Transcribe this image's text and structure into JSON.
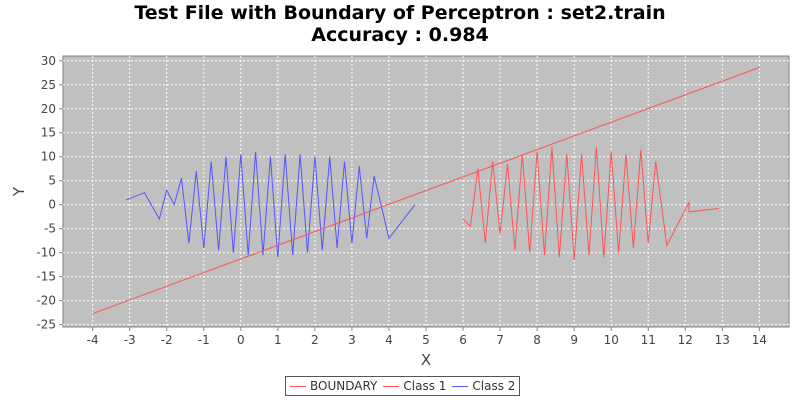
{
  "title_line1": "Test File with Boundary of Perceptron : set2.train",
  "title_line2": "Accuracy : 0.984",
  "chart_data": {
    "type": "line",
    "title": "Test File with Boundary of Perceptron : set2.train",
    "subtitle": "Accuracy : 0.984",
    "xlabel": "X",
    "ylabel": "Y",
    "xlim": [
      -4.8,
      14.8
    ],
    "ylim": [
      -25.5,
      31
    ],
    "xticks": [
      -4,
      -3,
      -2,
      -1,
      0,
      1,
      2,
      3,
      4,
      5,
      6,
      7,
      8,
      9,
      10,
      11,
      12,
      13,
      14
    ],
    "yticks": [
      -25,
      -20,
      -15,
      -10,
      -5,
      0,
      5,
      10,
      15,
      20,
      25,
      30
    ],
    "grid": true,
    "legend_position": "bottom",
    "series": [
      {
        "name": "BOUNDARY",
        "color": "#ff5555",
        "x": [
          -4,
          14
        ],
        "y": [
          -22.7,
          28.6
        ]
      },
      {
        "name": "Class 1",
        "color": "#ff5555",
        "x": [
          6.0,
          6.2,
          6.4,
          6.6,
          6.8,
          7.0,
          7.2,
          7.4,
          7.6,
          7.8,
          8.0,
          8.2,
          8.4,
          8.6,
          8.8,
          9.0,
          9.2,
          9.4,
          9.6,
          9.8,
          10.0,
          10.2,
          10.4,
          10.6,
          10.8,
          11.0,
          11.2,
          11.5,
          12.1,
          12.1,
          12.9
        ],
        "y": [
          -3,
          -4.5,
          7.5,
          -8,
          9,
          -6,
          8.5,
          -9.5,
          10.5,
          -10,
          11,
          -10.5,
          12,
          -11,
          10.5,
          -11.5,
          10.5,
          -10.5,
          12,
          -11,
          11,
          -10,
          10.5,
          -9,
          11.5,
          -8,
          9,
          -8.5,
          0.5,
          -1.5,
          -0.8
        ]
      },
      {
        "name": "Class 2",
        "color": "#5555ff",
        "x": [
          -3.1,
          -2.6,
          -2.2,
          -2.0,
          -1.8,
          -1.6,
          -1.4,
          -1.2,
          -1.0,
          -0.8,
          -0.6,
          -0.4,
          -0.2,
          0.0,
          0.2,
          0.4,
          0.6,
          0.8,
          1.0,
          1.2,
          1.4,
          1.6,
          1.8,
          2.0,
          2.2,
          2.4,
          2.6,
          2.8,
          3.0,
          3.2,
          3.4,
          3.6,
          4.0,
          4.7
        ],
        "y": [
          1,
          2.5,
          -3,
          3,
          0,
          5.5,
          -8,
          7,
          -9,
          9,
          -9.5,
          10,
          -10,
          10.5,
          -10.5,
          11,
          -10.5,
          10,
          -11,
          10.5,
          -10.5,
          10.5,
          -10,
          10,
          -9.5,
          10,
          -9,
          9,
          -8,
          8,
          -7,
          6,
          -7,
          0
        ]
      }
    ]
  }
}
